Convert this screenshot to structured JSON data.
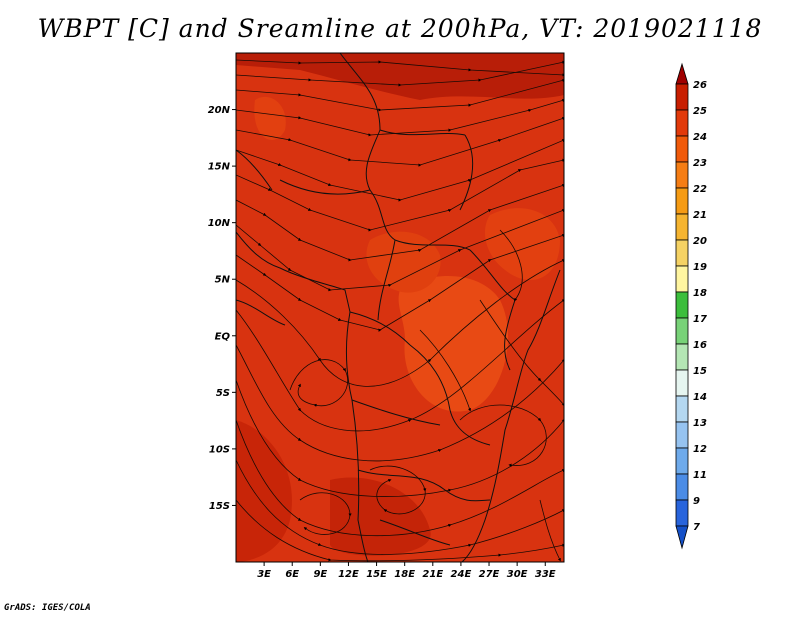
{
  "title": "WBPT [C] and Sreamline at 200hPa, VT: 2019021118",
  "footer": "GrADS: IGES/COLA",
  "map": {
    "lat_ticks": [
      {
        "value": 20,
        "label": "20N"
      },
      {
        "value": 15,
        "label": "15N"
      },
      {
        "value": 10,
        "label": "10N"
      },
      {
        "value": 5,
        "label": "5N"
      },
      {
        "value": 0,
        "label": "EQ"
      },
      {
        "value": -5,
        "label": "5S"
      },
      {
        "value": -10,
        "label": "10S"
      },
      {
        "value": -15,
        "label": "15S"
      }
    ],
    "lon_ticks": [
      {
        "value": 3,
        "label": "3E"
      },
      {
        "value": 6,
        "label": "6E"
      },
      {
        "value": 9,
        "label": "9E"
      },
      {
        "value": 12,
        "label": "12E"
      },
      {
        "value": 15,
        "label": "15E"
      },
      {
        "value": 18,
        "label": "18E"
      },
      {
        "value": 21,
        "label": "21E"
      },
      {
        "value": 24,
        "label": "24E"
      },
      {
        "value": 27,
        "label": "27E"
      },
      {
        "value": 30,
        "label": "30E"
      },
      {
        "value": 33,
        "label": "33E"
      }
    ],
    "lon_range": [
      0,
      35
    ],
    "lat_range": [
      -20,
      25
    ]
  },
  "colorbar": {
    "levels": [
      "26",
      "25",
      "24",
      "23",
      "22",
      "21",
      "20",
      "19",
      "18",
      "17",
      "16",
      "15",
      "14",
      "13",
      "12",
      "11",
      "9",
      "7"
    ],
    "colors": [
      "#a00000",
      "#c81e00",
      "#e23a0a",
      "#f05a0a",
      "#f57d14",
      "#f59b14",
      "#f5b430",
      "#f5d264",
      "#fff5a0",
      "#3cbe3c",
      "#78d278",
      "#b4e6b4",
      "#e6f5f0",
      "#b4d7f0",
      "#96c3f0",
      "#6eaaeb",
      "#4b8ce6",
      "#2864dc",
      "#1450c8"
    ]
  }
}
